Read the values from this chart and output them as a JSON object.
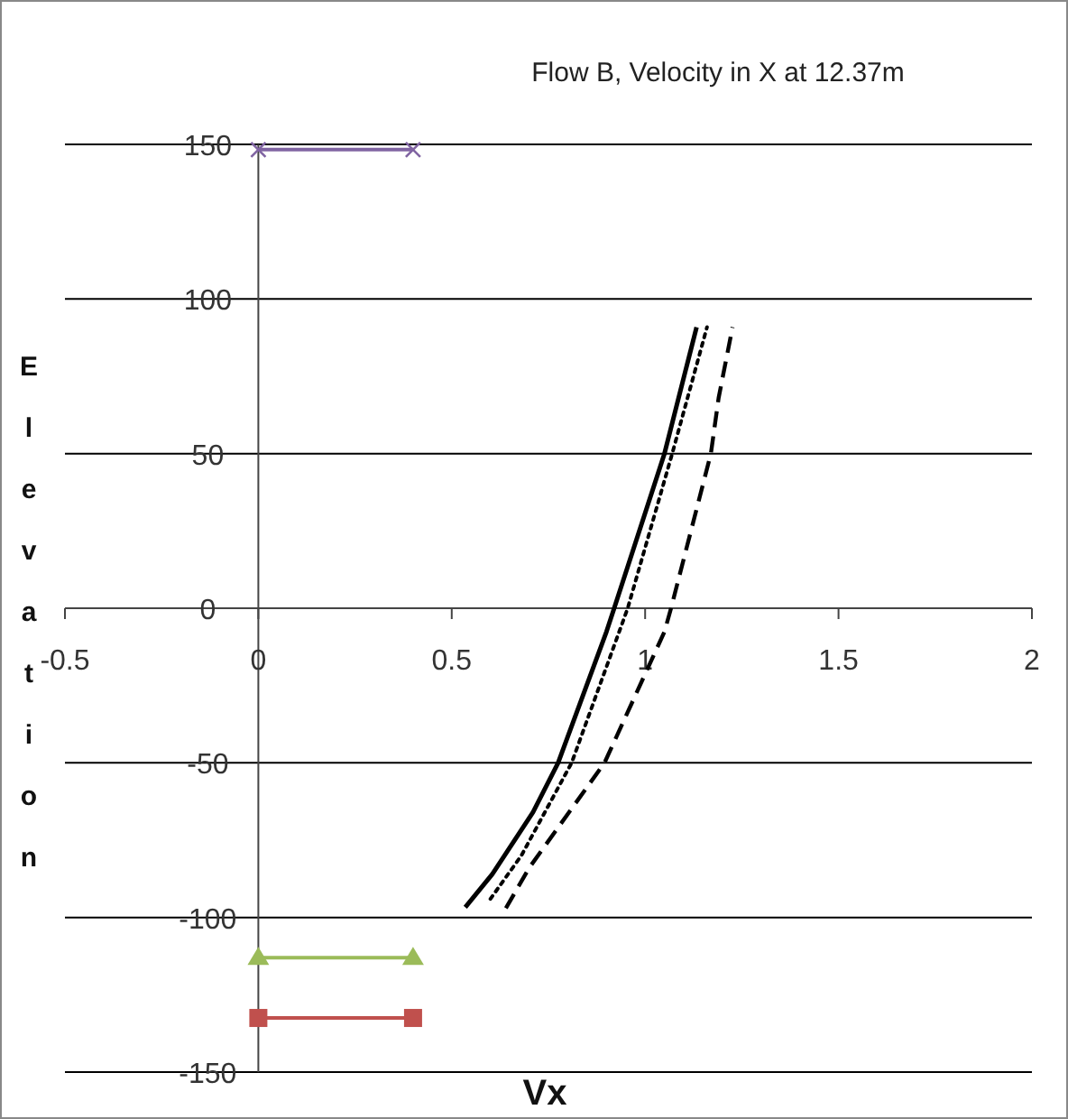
{
  "chart_data": {
    "type": "line",
    "title": "Flow B, Velocity in X at 12.37m",
    "xlabel": "Vx",
    "ylabel": "Elevation",
    "xlim": [
      -0.5,
      2
    ],
    "ylim": [
      -150,
      150
    ],
    "xticks": [
      -0.5,
      0,
      0.5,
      1,
      1.5,
      2
    ],
    "yticks": [
      -150,
      -100,
      -50,
      0,
      50,
      100,
      150
    ],
    "grid": "y",
    "marker": "none",
    "series": [
      {
        "color": "#000000",
        "line_style": "solid",
        "x": [
          0.535,
          0.605,
          0.71,
          0.775,
          0.9,
          0.92,
          1.05,
          1.133
        ],
        "values": [
          -96.7,
          -86,
          -66,
          -50,
          -7.6,
          0,
          50,
          90.9
        ]
      },
      {
        "color": "#000000",
        "line_style": "dotted",
        "x": [
          0.6,
          0.68,
          0.81,
          0.955,
          1.07,
          1.16
        ],
        "values": [
          -94,
          -80,
          -50,
          0,
          50,
          90.9
        ]
      },
      {
        "color": "#000000",
        "line_style": "dashed",
        "x": [
          0.64,
          0.7,
          0.895,
          1.05,
          1.067,
          1.17,
          1.19,
          1.226
        ],
        "values": [
          -97,
          -84,
          -50,
          -7.6,
          0,
          50,
          68,
          90.9
        ]
      },
      {
        "color": "#8064a2",
        "line_style": "solid",
        "marker": "cross",
        "x": [
          0,
          0.4
        ],
        "values": [
          148.3,
          148.3
        ]
      },
      {
        "color": "#9bbb59",
        "line_style": "solid",
        "marker": "triangle",
        "x": [
          0,
          0.4
        ],
        "values": [
          -113,
          -113
        ]
      },
      {
        "color": "#c0504d",
        "line_style": "solid",
        "marker": "square",
        "x": [
          0,
          0.4
        ],
        "values": [
          -132.5,
          -132.5
        ]
      }
    ]
  }
}
